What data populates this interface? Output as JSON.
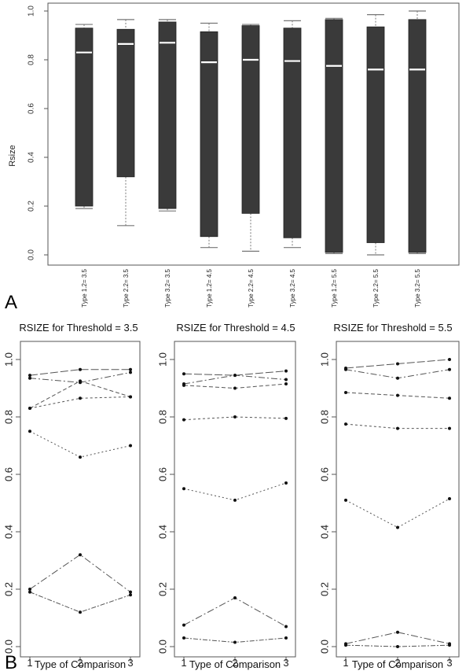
{
  "figure": {
    "panel_a_label": "A",
    "panel_b_label": "B"
  },
  "colors": {
    "box_fill": "#3a3a3a",
    "median_line": "#ffffff",
    "axis": "#555555",
    "whisker": "#777777",
    "line": "#555555",
    "point": "#111111"
  },
  "chart_data": [
    {
      "type": "box",
      "title": "",
      "xlabel": "",
      "ylabel": "Rsize",
      "ylim": [
        -0.04,
        1.04
      ],
      "yticks": [
        "0.0",
        "0.2",
        "0.4",
        "0.6",
        "0.8",
        "1.0"
      ],
      "categories": [
        "Type 1.2= 3.5",
        "Type 2.2= 3.5",
        "Type 3.2= 3.5",
        "Type 1.2= 4.5",
        "Type 2.2= 4.5",
        "Type 3.2= 4.5",
        "Type 1.2= 5.5",
        "Type 2.2= 5.5",
        "Type 3.2= 5.5"
      ],
      "boxes": [
        {
          "min": 0.19,
          "q1": 0.2,
          "median": 0.83,
          "q3": 0.93,
          "max": 0.945
        },
        {
          "min": 0.12,
          "q1": 0.32,
          "median": 0.865,
          "q3": 0.925,
          "max": 0.965
        },
        {
          "min": 0.18,
          "q1": 0.19,
          "median": 0.87,
          "q3": 0.955,
          "max": 0.965
        },
        {
          "min": 0.03,
          "q1": 0.075,
          "median": 0.79,
          "q3": 0.915,
          "max": 0.95
        },
        {
          "min": 0.015,
          "q1": 0.17,
          "median": 0.8,
          "q3": 0.94,
          "max": 0.945
        },
        {
          "min": 0.03,
          "q1": 0.07,
          "median": 0.795,
          "q3": 0.93,
          "max": 0.96
        },
        {
          "min": 0.005,
          "q1": 0.01,
          "median": 0.775,
          "q3": 0.965,
          "max": 0.97
        },
        {
          "min": 0.0,
          "q1": 0.05,
          "median": 0.76,
          "q3": 0.935,
          "max": 0.985
        },
        {
          "min": 0.005,
          "q1": 0.01,
          "median": 0.76,
          "q3": 0.965,
          "max": 1.0
        }
      ]
    },
    {
      "type": "line",
      "title": "RSIZE for Threshold = 3.5",
      "xlabel": "Type of Comparison",
      "ylabel": "",
      "x": [
        1,
        2,
        3
      ],
      "ylim": [
        -0.04,
        1.04
      ],
      "yticks": [
        "0.0",
        "0.2",
        "0.4",
        "0.6",
        "0.8",
        "1.0"
      ],
      "series": [
        {
          "values": [
            0.945,
            0.965,
            0.965
          ]
        },
        {
          "values": [
            0.935,
            0.92,
            0.955
          ]
        },
        {
          "values": [
            0.83,
            0.925,
            0.87
          ]
        },
        {
          "values": [
            0.83,
            0.865,
            0.87
          ]
        },
        {
          "values": [
            0.75,
            0.66,
            0.7
          ]
        },
        {
          "values": [
            0.2,
            0.32,
            0.19
          ]
        },
        {
          "values": [
            0.19,
            0.12,
            0.18
          ]
        }
      ]
    },
    {
      "type": "line",
      "title": "RSIZE for Threshold = 4.5",
      "xlabel": "Type of Comparison",
      "ylabel": "",
      "x": [
        1,
        2,
        3
      ],
      "ylim": [
        -0.04,
        1.04
      ],
      "yticks": [
        "0.0",
        "0.2",
        "0.4",
        "0.6",
        "0.8",
        "1.0"
      ],
      "series": [
        {
          "values": [
            0.95,
            0.945,
            0.96
          ]
        },
        {
          "values": [
            0.915,
            0.945,
            0.93
          ]
        },
        {
          "values": [
            0.91,
            0.9,
            0.915
          ]
        },
        {
          "values": [
            0.79,
            0.8,
            0.795
          ]
        },
        {
          "values": [
            0.55,
            0.51,
            0.57
          ]
        },
        {
          "values": [
            0.075,
            0.17,
            0.07
          ]
        },
        {
          "values": [
            0.03,
            0.015,
            0.03
          ]
        }
      ]
    },
    {
      "type": "line",
      "title": "RSIZE for Threshold = 5.5",
      "xlabel": "Type of Comparison",
      "ylabel": "",
      "x": [
        1,
        2,
        3
      ],
      "ylim": [
        -0.04,
        1.04
      ],
      "yticks": [
        "0.0",
        "0.2",
        "0.4",
        "0.6",
        "0.8",
        "1.0"
      ],
      "series": [
        {
          "values": [
            0.97,
            0.985,
            1.0
          ]
        },
        {
          "values": [
            0.965,
            0.935,
            0.965
          ]
        },
        {
          "values": [
            0.885,
            0.875,
            0.865
          ]
        },
        {
          "values": [
            0.775,
            0.76,
            0.76
          ]
        },
        {
          "values": [
            0.51,
            0.415,
            0.515
          ]
        },
        {
          "values": [
            0.01,
            0.05,
            0.01
          ]
        },
        {
          "values": [
            0.005,
            0.0,
            0.005
          ]
        }
      ]
    }
  ]
}
